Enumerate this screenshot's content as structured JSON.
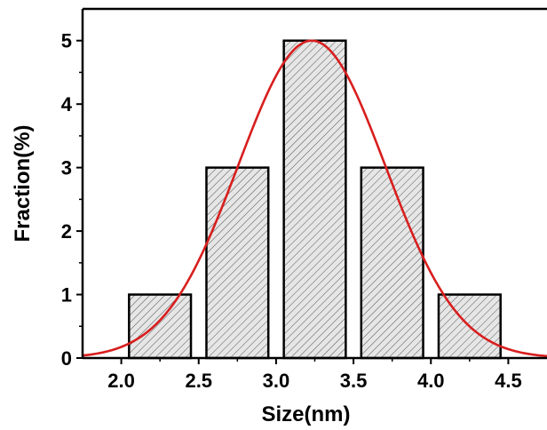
{
  "chart_data": {
    "type": "bar",
    "subtype": "histogram-with-fit-curve",
    "title": "",
    "xlabel": "Size(nm)",
    "ylabel": "Fraction(%)",
    "xlim": [
      1.75,
      4.75
    ],
    "ylim": [
      0,
      5.5
    ],
    "x_ticks": [
      2.0,
      2.5,
      3.0,
      3.5,
      4.0,
      4.5
    ],
    "x_tick_labels": [
      "2.0",
      "2.5",
      "3.0",
      "3.5",
      "4.0",
      "4.5"
    ],
    "y_ticks": [
      0,
      1,
      2,
      3,
      4,
      5
    ],
    "y_tick_labels": [
      "0",
      "1",
      "2",
      "3",
      "4",
      "5"
    ],
    "bins": [
      {
        "x0": 2.05,
        "x1": 2.45,
        "value": 1
      },
      {
        "x0": 2.55,
        "x1": 2.95,
        "value": 3
      },
      {
        "x0": 3.05,
        "x1": 3.45,
        "value": 5
      },
      {
        "x0": 3.55,
        "x1": 3.95,
        "value": 3
      },
      {
        "x0": 4.05,
        "x1": 4.45,
        "value": 1
      }
    ],
    "fit_curve": {
      "kind": "gaussian",
      "amplitude": 5.0,
      "center": 3.23,
      "sigma": 0.475
    },
    "grid": false,
    "legend": "none",
    "colors": {
      "bar_fill": "#e6e6e6",
      "bar_hatch": "#555555",
      "bar_edge": "#000000",
      "fit_curve": "#d81e1e"
    }
  }
}
